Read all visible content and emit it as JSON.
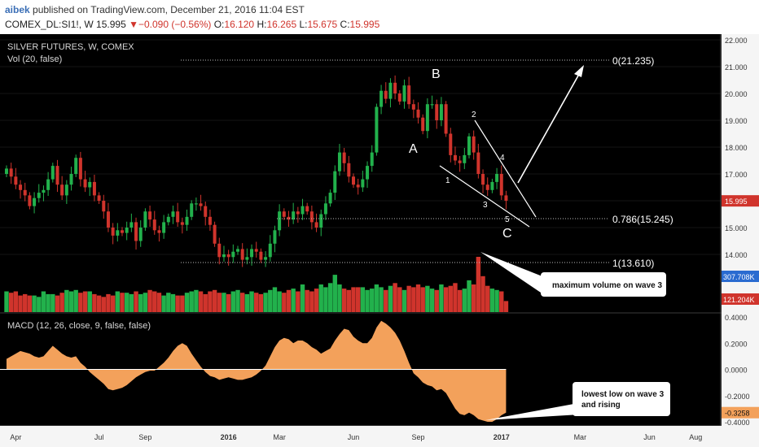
{
  "header": {
    "author": "aibek",
    "published": "published on TradingView.com, December 21, 2016 11:04 EST",
    "symbol": "COMEX_DL:SI1!",
    "interval": "W",
    "last": "15.995",
    "change": "▼−0.090 (−0.56%)",
    "open_label": "O:",
    "open": "16.120",
    "high_label": "H:",
    "high": "16.265",
    "low_label": "L:",
    "low": "15.675",
    "close_label": "C:",
    "close": "15.995"
  },
  "legend": {
    "main": "SILVER FUTURES, W, COMEX",
    "volume": "Vol (20, false)",
    "macd": "MACD (12, 26, close, 9, false, false)"
  },
  "colors": {
    "background": "#000000",
    "up": "#22b14c",
    "down": "#d0342c",
    "macd_fill": "#f3a15b",
    "text": "#d8d8d8"
  },
  "annotations": {
    "A": "A",
    "B": "B",
    "C": "C",
    "w1": "1",
    "w2": "2",
    "w3": "3",
    "w4": "4",
    "w5": "5",
    "fib_0": "0(21.235)",
    "fib_786": "0.786(15.245)",
    "fib_1": "1(13.610)",
    "volume_callout": "maximum volume on wave 3",
    "macd_callout_line1": "lowest low on wave 3",
    "macd_callout_line2": "and rising"
  },
  "chart_data": [
    {
      "type": "candlestick",
      "title": "SILVER FUTURES, W, COMEX",
      "x_tick_labels": [
        "Apr",
        "Jul",
        "Sep",
        "2016",
        "Mar",
        "Jun",
        "Sep",
        "2017",
        "Mar",
        "Jun",
        "Aug"
      ],
      "y_ticks": [
        22.0,
        21.0,
        20.0,
        19.0,
        18.0,
        17.0,
        16.0,
        15.0,
        14.0
      ],
      "y_tick_labels": [
        "22.000",
        "21.000",
        "20.000",
        "19.000",
        "18.000",
        "17.000",
        "16.000",
        "15.000",
        "14.000"
      ],
      "ylim": [
        13.0,
        22.2
      ],
      "last_price_label": "15.995",
      "close": [
        17.2,
        16.9,
        16.6,
        16.4,
        16.2,
        15.8,
        16.1,
        16.3,
        16.4,
        16.8,
        17.3,
        16.6,
        16.2,
        16.6,
        17.0,
        17.6,
        16.8,
        16.5,
        16.7,
        16.2,
        16.0,
        15.6,
        15.0,
        14.7,
        14.9,
        14.8,
        15.0,
        15.2,
        14.5,
        15.0,
        15.6,
        15.3,
        14.9,
        14.8,
        15.2,
        15.4,
        15.6,
        15.2,
        15.1,
        15.4,
        15.9,
        15.9,
        15.8,
        15.4,
        15.1,
        14.4,
        13.9,
        14.0,
        13.9,
        14.1,
        14.2,
        13.8,
        13.9,
        14.2,
        14.1,
        13.8,
        13.9,
        14.4,
        14.9,
        15.6,
        15.4,
        15.3,
        15.6,
        15.5,
        15.8,
        15.6,
        15.2,
        15.0,
        15.5,
        15.9,
        16.3,
        17.1,
        17.8,
        17.4,
        16.9,
        16.6,
        16.5,
        16.8,
        17.3,
        17.8,
        19.5,
        20.1,
        19.8,
        20.4,
        20.0,
        19.7,
        20.3,
        19.6,
        19.4,
        19.1,
        18.6,
        19.6,
        19.6,
        19.0,
        19.6,
        18.5,
        17.7,
        17.5,
        17.4,
        17.7,
        18.4,
        17.8,
        17.0,
        16.6,
        16.4,
        16.7,
        17.0,
        16.2,
        16.0
      ],
      "volume_ylim": [
        0,
        5
      ],
      "volume_tick_labels": [
        "307.708K",
        "121.204K"
      ],
      "volume": [
        1.5,
        1.4,
        1.5,
        1.2,
        1.3,
        1.2,
        1.2,
        1.1,
        1.5,
        1.3,
        1.3,
        1.2,
        1.4,
        1.6,
        1.5,
        1.6,
        1.4,
        1.5,
        1.5,
        1.3,
        1.2,
        1.1,
        1.3,
        1.2,
        1.5,
        1.4,
        1.4,
        1.3,
        1.5,
        1.3,
        1.4,
        1.6,
        1.5,
        1.4,
        1.2,
        1.4,
        1.3,
        1.2,
        1.2,
        1.4,
        1.5,
        1.6,
        1.5,
        1.3,
        1.5,
        1.6,
        1.4,
        1.4,
        1.3,
        1.5,
        1.6,
        1.4,
        1.3,
        1.5,
        1.4,
        1.3,
        1.4,
        1.6,
        1.8,
        1.5,
        1.4,
        1.6,
        1.7,
        1.5,
        2.0,
        1.6,
        1.5,
        1.7,
        2.0,
        1.8,
        2.1,
        2.7,
        2.0,
        1.7,
        1.6,
        1.8,
        1.8,
        1.8,
        1.6,
        1.7,
        2.0,
        1.8,
        1.6,
        1.9,
        2.1,
        1.8,
        1.6,
        1.9,
        1.8,
        2.0,
        1.8,
        1.9,
        1.7,
        1.6,
        2.0,
        1.8,
        1.9,
        2.1,
        1.6,
        1.7,
        2.3,
        2.0,
        4.0,
        2.6,
        1.9,
        1.7,
        1.6,
        1.5,
        0.8
      ],
      "macd": {
        "legend": "MACD (12, 26, close, 9, false, false)",
        "y_ticks": [
          0.4,
          0.2,
          0.0,
          -0.2,
          -0.4
        ],
        "y_tick_labels": [
          "0.4000",
          "0.2000",
          "0.0000",
          "-0.2000",
          "-0.4000"
        ],
        "ylim": [
          -0.44,
          0.42
        ],
        "last_value_label": "-0.3258",
        "values": [
          0.08,
          0.1,
          0.12,
          0.14,
          0.13,
          0.12,
          0.1,
          0.09,
          0.1,
          0.14,
          0.18,
          0.15,
          0.12,
          0.1,
          0.09,
          0.1,
          0.05,
          0.02,
          -0.02,
          -0.05,
          -0.08,
          -0.11,
          -0.15,
          -0.16,
          -0.15,
          -0.14,
          -0.12,
          -0.09,
          -0.06,
          -0.04,
          -0.02,
          -0.01,
          -0.01,
          0.02,
          0.05,
          0.09,
          0.14,
          0.18,
          0.2,
          0.18,
          0.12,
          0.07,
          0.02,
          -0.02,
          -0.05,
          -0.06,
          -0.08,
          -0.07,
          -0.06,
          -0.07,
          -0.08,
          -0.08,
          -0.07,
          -0.06,
          -0.04,
          -0.01,
          0.03,
          0.1,
          0.17,
          0.22,
          0.24,
          0.23,
          0.2,
          0.22,
          0.22,
          0.2,
          0.17,
          0.15,
          0.12,
          0.14,
          0.16,
          0.22,
          0.27,
          0.31,
          0.3,
          0.25,
          0.22,
          0.2,
          0.2,
          0.24,
          0.32,
          0.37,
          0.35,
          0.32,
          0.28,
          0.22,
          0.14,
          0.05,
          -0.03,
          -0.06,
          -0.1,
          -0.12,
          -0.13,
          -0.16,
          -0.15,
          -0.18,
          -0.24,
          -0.3,
          -0.34,
          -0.35,
          -0.33,
          -0.35,
          -0.38,
          -0.39,
          -0.4,
          -0.4,
          -0.38,
          -0.35,
          -0.33
        ]
      }
    }
  ]
}
